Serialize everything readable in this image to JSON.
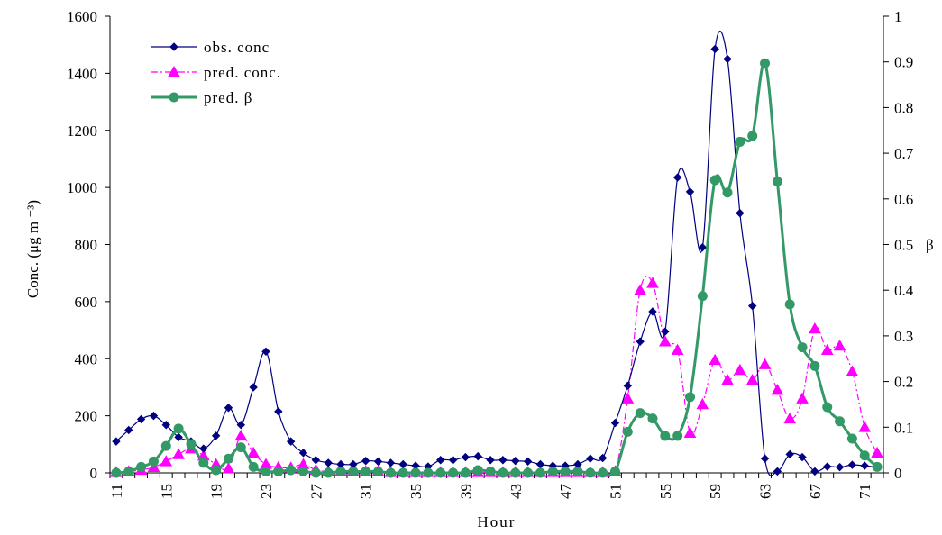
{
  "chart_data": {
    "type": "line",
    "xlabel": "Hour",
    "ylabel": "Conc. (μg m ⁻³)",
    "y2label": "β",
    "ylim": [
      0,
      1600
    ],
    "y2lim": [
      0,
      1
    ],
    "y_ticks": [
      0,
      200,
      400,
      600,
      800,
      1000,
      1200,
      1400,
      1600
    ],
    "y2_ticks": [
      0,
      0.1,
      0.2,
      0.3,
      0.4,
      0.5,
      0.6,
      0.7,
      0.8,
      0.9,
      1
    ],
    "x_tick_labels": [
      11,
      15,
      19,
      23,
      27,
      31,
      35,
      39,
      43,
      47,
      51,
      55,
      59,
      63,
      67,
      71
    ],
    "grid": false,
    "legend_position": "top-left",
    "x": [
      11,
      12,
      13,
      14,
      15,
      16,
      17,
      18,
      19,
      20,
      21,
      22,
      23,
      24,
      25,
      26,
      27,
      28,
      29,
      30,
      31,
      32,
      33,
      34,
      35,
      36,
      37,
      38,
      39,
      40,
      41,
      42,
      43,
      44,
      45,
      46,
      47,
      48,
      49,
      50,
      51,
      52,
      53,
      54,
      55,
      56,
      57,
      58,
      59,
      60,
      61,
      62,
      63,
      64,
      65,
      66,
      67,
      68,
      69,
      70,
      71,
      72
    ],
    "series": [
      {
        "name": "obs. conc",
        "axis": "left",
        "color": "#000080",
        "marker": "diamond",
        "values": [
          110,
          150,
          188,
          200,
          168,
          125,
          110,
          85,
          130,
          228,
          168,
          300,
          425,
          215,
          110,
          70,
          45,
          35,
          30,
          30,
          42,
          40,
          35,
          30,
          25,
          22,
          45,
          45,
          55,
          58,
          45,
          45,
          42,
          40,
          30,
          25,
          25,
          30,
          50,
          52,
          175,
          305,
          460,
          565,
          495,
          1035,
          985,
          790,
          1485,
          1450,
          910,
          585,
          50,
          5,
          65,
          55,
          5,
          22,
          20,
          28,
          25,
          20
        ]
      },
      {
        "name": "pred. conc.",
        "axis": "left",
        "color": "#ff00ff",
        "marker": "triangle",
        "values": [
          2,
          5,
          10,
          20,
          40,
          65,
          85,
          60,
          30,
          15,
          130,
          70,
          30,
          20,
          18,
          30,
          10,
          5,
          5,
          5,
          5,
          5,
          2,
          2,
          2,
          2,
          2,
          2,
          2,
          2,
          2,
          2,
          2,
          2,
          2,
          2,
          2,
          2,
          2,
          2,
          5,
          260,
          640,
          665,
          460,
          430,
          140,
          240,
          395,
          325,
          360,
          325,
          380,
          290,
          190,
          260,
          505,
          430,
          445,
          355,
          160,
          70
        ]
      },
      {
        "name": "pred. β",
        "axis": "right",
        "color": "#339966",
        "marker": "circle",
        "values": [
          0,
          0.003,
          0.013,
          0.025,
          0.059,
          0.097,
          0.063,
          0.022,
          0.006,
          0.031,
          0.056,
          0.013,
          0.003,
          0.003,
          0.006,
          0.003,
          0,
          0,
          0.003,
          0.003,
          0.003,
          0.003,
          0,
          0,
          0,
          0,
          0,
          0,
          0,
          0.006,
          0.003,
          0,
          0,
          0,
          0,
          0.003,
          0.003,
          0.003,
          0,
          0,
          0.003,
          0.09,
          0.131,
          0.119,
          0.081,
          0.081,
          0.166,
          0.387,
          0.641,
          0.614,
          0.725,
          0.738,
          0.897,
          0.638,
          0.369,
          0.275,
          0.234,
          0.144,
          0.113,
          0.075,
          0.038,
          0.013
        ]
      }
    ]
  }
}
